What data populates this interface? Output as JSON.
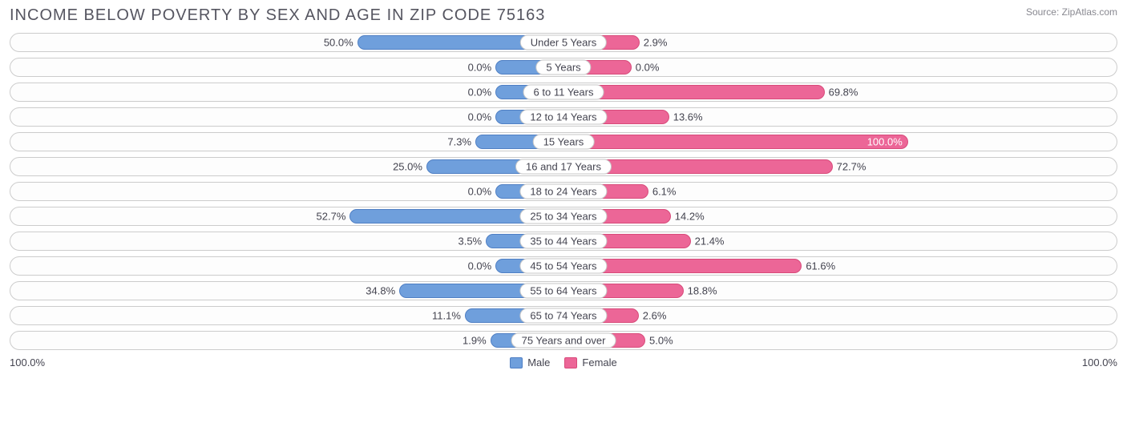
{
  "title": "INCOME BELOW POVERTY BY SEX AND AGE IN ZIP CODE 75163",
  "source": "Source: ZipAtlas.com",
  "chart": {
    "type": "diverging-bar",
    "male_color": "#6f9fdc",
    "male_border": "#4f7fc4",
    "female_color": "#ec6697",
    "female_border": "#d84a7a",
    "row_border_color": "#cccccc",
    "background_color": "#ffffff",
    "pill_border_color": "#c8c8c8",
    "text_color": "#444450",
    "title_color": "#555560",
    "source_color": "#888890",
    "base_bar_min_pct": 12,
    "scale_pct": 50,
    "axis_left_label": "100.0%",
    "axis_right_label": "100.0%",
    "legend": {
      "male_label": "Male",
      "female_label": "Female"
    },
    "rows": [
      {
        "category": "Under 5 Years",
        "male": 50.0,
        "female": 2.9
      },
      {
        "category": "5 Years",
        "male": 0.0,
        "female": 0.0
      },
      {
        "category": "6 to 11 Years",
        "male": 0.0,
        "female": 69.8
      },
      {
        "category": "12 to 14 Years",
        "male": 0.0,
        "female": 13.6
      },
      {
        "category": "15 Years",
        "male": 7.3,
        "female": 100.0
      },
      {
        "category": "16 and 17 Years",
        "male": 25.0,
        "female": 72.7
      },
      {
        "category": "18 to 24 Years",
        "male": 0.0,
        "female": 6.1
      },
      {
        "category": "25 to 34 Years",
        "male": 52.7,
        "female": 14.2
      },
      {
        "category": "35 to 44 Years",
        "male": 3.5,
        "female": 21.4
      },
      {
        "category": "45 to 54 Years",
        "male": 0.0,
        "female": 61.6
      },
      {
        "category": "55 to 64 Years",
        "male": 34.8,
        "female": 18.8
      },
      {
        "category": "65 to 74 Years",
        "male": 11.1,
        "female": 2.6
      },
      {
        "category": "75 Years and over",
        "male": 1.9,
        "female": 5.0
      }
    ]
  }
}
